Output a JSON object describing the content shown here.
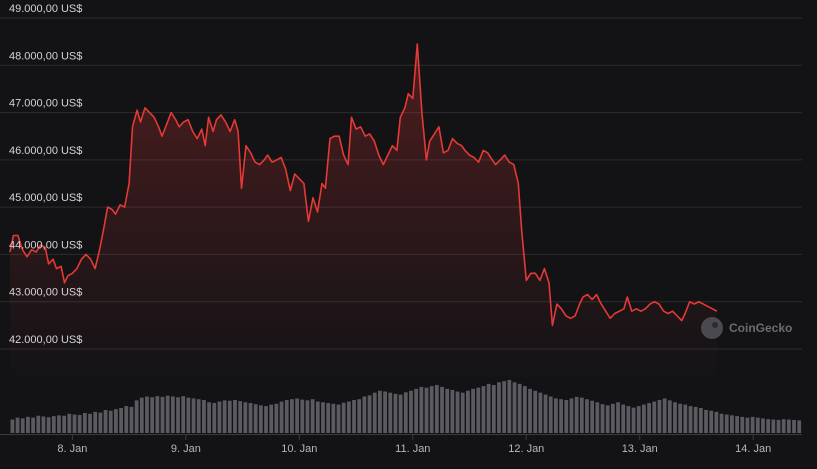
{
  "chart_data": {
    "type": "line",
    "title": "",
    "xlabel": "",
    "ylabel": "",
    "y_tick_labels": [
      "42.000,00 US$",
      "43.000,00 US$",
      "44.000,00 US$",
      "45.000,00 US$",
      "46.000,00 US$",
      "47.000,00 US$",
      "48.000,00 US$",
      "49.000,00 US$"
    ],
    "y_ticks": [
      42000,
      43000,
      44000,
      45000,
      46000,
      47000,
      48000,
      49000
    ],
    "ylim": [
      42000,
      49000
    ],
    "x_tick_labels": [
      "8. Jan",
      "9. Jan",
      "10. Jan",
      "11. Jan",
      "12. Jan",
      "13. Jan",
      "14. Jan"
    ],
    "x_ticks": [
      1.0,
      2.0,
      3.0,
      4.0,
      5.0,
      6.0,
      7.0
    ],
    "xlim": [
      0.45,
      7.43
    ],
    "x_axis_note": "x values are days, where 1.0 = 8. Jan 00:00",
    "grid": true,
    "line_color": "#e53935",
    "series": [
      {
        "name": "",
        "points": [
          [
            0.45,
            44.05
          ],
          [
            0.48,
            44.4
          ],
          [
            0.52,
            44.4
          ],
          [
            0.56,
            44.1
          ],
          [
            0.6,
            43.95
          ],
          [
            0.64,
            44.1
          ],
          [
            0.68,
            44.05
          ],
          [
            0.72,
            44.2
          ],
          [
            0.76,
            44.15
          ],
          [
            0.79,
            43.8
          ],
          [
            0.83,
            43.9
          ],
          [
            0.86,
            43.7
          ],
          [
            0.9,
            43.75
          ],
          [
            0.93,
            43.4
          ],
          [
            0.96,
            43.55
          ],
          [
            1.0,
            43.6
          ],
          [
            1.04,
            43.7
          ],
          [
            1.08,
            43.9
          ],
          [
            1.12,
            44.0
          ],
          [
            1.16,
            43.9
          ],
          [
            1.2,
            43.7
          ],
          [
            1.24,
            44.1
          ],
          [
            1.28,
            44.6
          ],
          [
            1.31,
            45.0
          ],
          [
            1.35,
            44.95
          ],
          [
            1.38,
            44.85
          ],
          [
            1.42,
            45.05
          ],
          [
            1.46,
            45.0
          ],
          [
            1.5,
            45.5
          ],
          [
            1.53,
            46.7
          ],
          [
            1.57,
            47.05
          ],
          [
            1.6,
            46.8
          ],
          [
            1.64,
            47.1
          ],
          [
            1.68,
            47.0
          ],
          [
            1.72,
            46.9
          ],
          [
            1.76,
            46.7
          ],
          [
            1.79,
            46.5
          ],
          [
            1.83,
            46.75
          ],
          [
            1.87,
            47.0
          ],
          [
            1.91,
            46.85
          ],
          [
            1.94,
            46.7
          ],
          [
            1.98,
            46.8
          ],
          [
            2.02,
            46.85
          ],
          [
            2.06,
            46.6
          ],
          [
            2.1,
            46.45
          ],
          [
            2.14,
            46.65
          ],
          [
            2.17,
            46.3
          ],
          [
            2.2,
            46.9
          ],
          [
            2.24,
            46.6
          ],
          [
            2.27,
            46.85
          ],
          [
            2.31,
            46.95
          ],
          [
            2.35,
            46.8
          ],
          [
            2.39,
            46.6
          ],
          [
            2.43,
            46.85
          ],
          [
            2.46,
            46.6
          ],
          [
            2.49,
            45.4
          ],
          [
            2.53,
            46.3
          ],
          [
            2.57,
            46.15
          ],
          [
            2.61,
            45.95
          ],
          [
            2.65,
            45.9
          ],
          [
            2.69,
            46.0
          ],
          [
            2.72,
            46.1
          ],
          [
            2.76,
            45.95
          ],
          [
            2.8,
            46.0
          ],
          [
            2.84,
            46.05
          ],
          [
            2.88,
            45.8
          ],
          [
            2.92,
            45.35
          ],
          [
            2.96,
            45.7
          ],
          [
            3.0,
            45.6
          ],
          [
            3.04,
            45.5
          ],
          [
            3.08,
            44.7
          ],
          [
            3.12,
            45.2
          ],
          [
            3.16,
            44.9
          ],
          [
            3.2,
            45.5
          ],
          [
            3.23,
            45.4
          ],
          [
            3.27,
            46.45
          ],
          [
            3.31,
            46.5
          ],
          [
            3.35,
            46.5
          ],
          [
            3.39,
            46.1
          ],
          [
            3.43,
            45.9
          ],
          [
            3.46,
            46.9
          ],
          [
            3.5,
            46.65
          ],
          [
            3.54,
            46.7
          ],
          [
            3.58,
            46.5
          ],
          [
            3.62,
            46.55
          ],
          [
            3.66,
            46.4
          ],
          [
            3.7,
            46.1
          ],
          [
            3.74,
            45.9
          ],
          [
            3.78,
            46.1
          ],
          [
            3.82,
            46.3
          ],
          [
            3.86,
            46.2
          ],
          [
            3.89,
            46.9
          ],
          [
            3.93,
            47.1
          ],
          [
            3.96,
            47.4
          ],
          [
            4.0,
            47.3
          ],
          [
            4.04,
            48.45
          ],
          [
            4.08,
            47.0
          ],
          [
            4.12,
            46.0
          ],
          [
            4.15,
            46.4
          ],
          [
            4.19,
            46.55
          ],
          [
            4.23,
            46.7
          ],
          [
            4.27,
            46.15
          ],
          [
            4.31,
            46.2
          ],
          [
            4.35,
            46.45
          ],
          [
            4.39,
            46.35
          ],
          [
            4.43,
            46.3
          ],
          [
            4.46,
            46.2
          ],
          [
            4.5,
            46.1
          ],
          [
            4.54,
            46.05
          ],
          [
            4.58,
            45.95
          ],
          [
            4.62,
            46.2
          ],
          [
            4.66,
            46.15
          ],
          [
            4.7,
            46.0
          ],
          [
            4.73,
            45.9
          ],
          [
            4.77,
            46.0
          ],
          [
            4.81,
            46.1
          ],
          [
            4.85,
            45.95
          ],
          [
            4.89,
            45.9
          ],
          [
            4.93,
            45.5
          ],
          [
            4.96,
            44.5
          ],
          [
            5.0,
            43.45
          ],
          [
            5.04,
            43.6
          ],
          [
            5.08,
            43.6
          ],
          [
            5.12,
            43.45
          ],
          [
            5.16,
            43.7
          ],
          [
            5.2,
            43.4
          ],
          [
            5.23,
            42.5
          ],
          [
            5.27,
            42.95
          ],
          [
            5.31,
            42.85
          ],
          [
            5.35,
            42.7
          ],
          [
            5.39,
            42.65
          ],
          [
            5.43,
            42.7
          ],
          [
            5.47,
            42.95
          ],
          [
            5.5,
            43.1
          ],
          [
            5.54,
            43.15
          ],
          [
            5.58,
            43.05
          ],
          [
            5.62,
            43.15
          ],
          [
            5.66,
            42.95
          ],
          [
            5.7,
            42.8
          ],
          [
            5.74,
            42.65
          ],
          [
            5.78,
            42.75
          ],
          [
            5.82,
            42.8
          ],
          [
            5.86,
            42.85
          ],
          [
            5.89,
            43.1
          ],
          [
            5.93,
            42.8
          ],
          [
            5.97,
            42.85
          ],
          [
            6.01,
            42.8
          ],
          [
            6.05,
            42.85
          ],
          [
            6.09,
            42.95
          ],
          [
            6.13,
            43.0
          ],
          [
            6.17,
            42.95
          ],
          [
            6.21,
            42.8
          ],
          [
            6.25,
            42.75
          ],
          [
            6.29,
            42.8
          ],
          [
            6.33,
            42.7
          ],
          [
            6.37,
            42.6
          ],
          [
            6.4,
            42.75
          ],
          [
            6.44,
            43.0
          ],
          [
            6.48,
            42.95
          ],
          [
            6.52,
            43.0
          ],
          [
            6.56,
            42.95
          ],
          [
            6.6,
            42.9
          ],
          [
            6.64,
            42.85
          ],
          [
            6.68,
            42.8
          ]
        ]
      }
    ],
    "volume_bars_relative": [
      0.35,
      0.4,
      0.38,
      0.42,
      0.4,
      0.45,
      0.43,
      0.41,
      0.44,
      0.46,
      0.45,
      0.5,
      0.48,
      0.47,
      0.52,
      0.5,
      0.55,
      0.53,
      0.6,
      0.58,
      0.62,
      0.65,
      0.7,
      0.68,
      0.85,
      0.92,
      0.95,
      0.93,
      0.96,
      0.94,
      0.97,
      0.95,
      0.93,
      0.96,
      0.92,
      0.9,
      0.88,
      0.86,
      0.8,
      0.78,
      0.82,
      0.85,
      0.84,
      0.86,
      0.83,
      0.8,
      0.78,
      0.75,
      0.72,
      0.7,
      0.74,
      0.76,
      0.82,
      0.86,
      0.88,
      0.9,
      0.87,
      0.85,
      0.88,
      0.82,
      0.8,
      0.78,
      0.76,
      0.74,
      0.79,
      0.82,
      0.86,
      0.88,
      0.95,
      0.98,
      1.05,
      1.1,
      1.08,
      1.05,
      1.02,
      1.0,
      1.06,
      1.1,
      1.15,
      1.2,
      1.18,
      1.22,
      1.25,
      1.2,
      1.15,
      1.12,
      1.08,
      1.05,
      1.1,
      1.15,
      1.18,
      1.22,
      1.28,
      1.25,
      1.32,
      1.35,
      1.38,
      1.32,
      1.28,
      1.22,
      1.15,
      1.1,
      1.05,
      1.0,
      0.95,
      0.9,
      0.88,
      0.86,
      0.9,
      0.94,
      0.92,
      0.88,
      0.84,
      0.8,
      0.75,
      0.72,
      0.76,
      0.8,
      0.74,
      0.7,
      0.66,
      0.7,
      0.74,
      0.78,
      0.82,
      0.86,
      0.9,
      0.85,
      0.8,
      0.76,
      0.74,
      0.7,
      0.68,
      0.65,
      0.6,
      0.58,
      0.55,
      0.5,
      0.48,
      0.46,
      0.44,
      0.42,
      0.4,
      0.42,
      0.4,
      0.38,
      0.36,
      0.35,
      0.34,
      0.36,
      0.35,
      0.34,
      0.33
    ],
    "watermark": "CoinGecko"
  }
}
